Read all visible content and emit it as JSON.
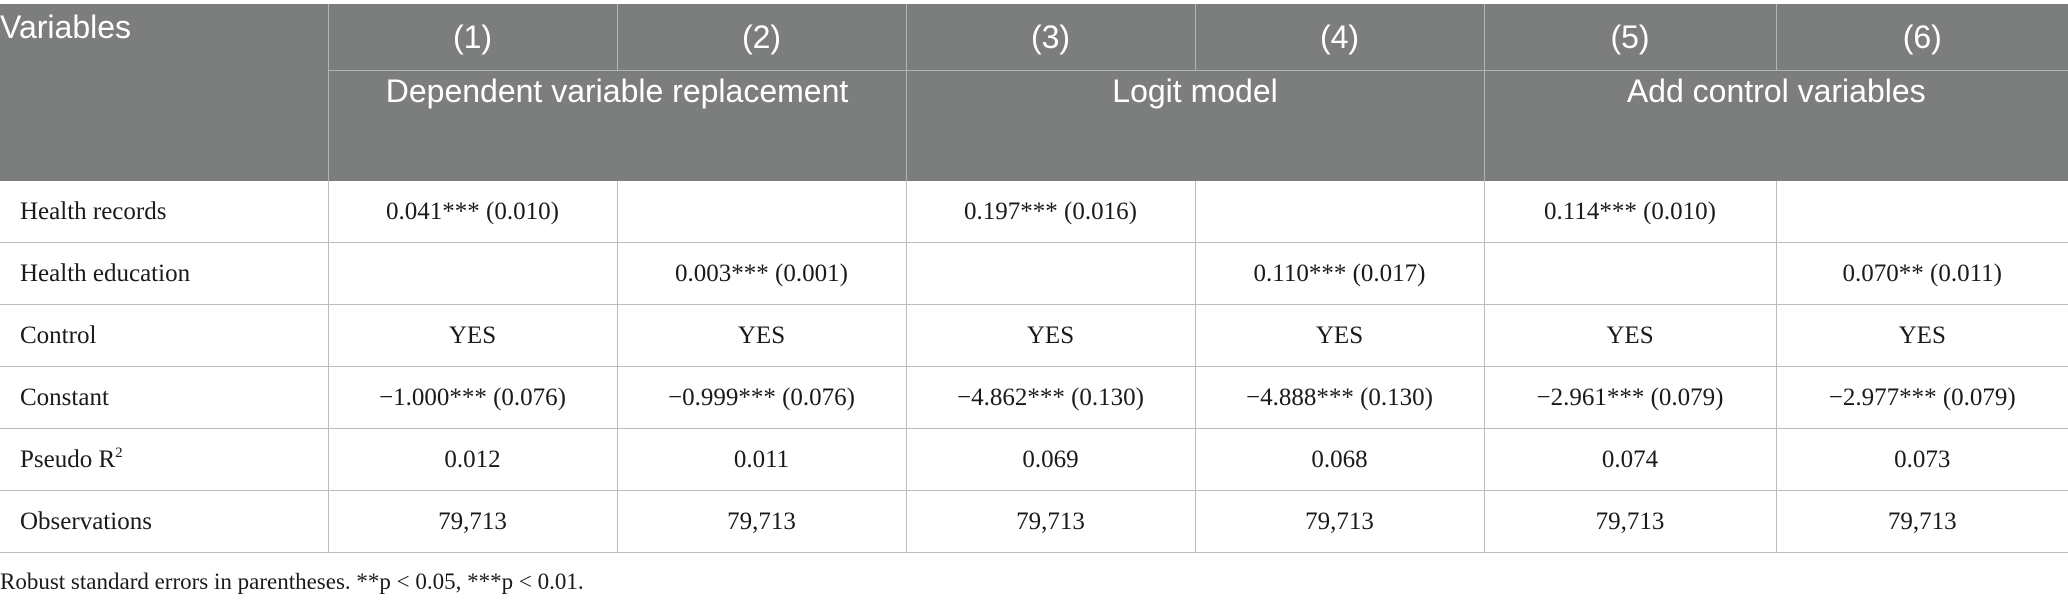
{
  "table": {
    "header": {
      "variables": "Variables",
      "columns": [
        "(1)",
        "(2)",
        "(3)",
        "(4)",
        "(5)",
        "(6)"
      ],
      "groups": [
        "Dependent variable replacement",
        "Logit model",
        "Add control variables"
      ]
    },
    "rows": [
      {
        "label": "Health records",
        "cells": [
          "0.041*** (0.010)",
          "",
          "0.197*** (0.016)",
          "",
          "0.114*** (0.010)",
          ""
        ]
      },
      {
        "label": "Health education",
        "cells": [
          "",
          "0.003*** (0.001)",
          "",
          "0.110*** (0.017)",
          "",
          "0.070** (0.011)"
        ]
      },
      {
        "label": "Control",
        "cells": [
          "YES",
          "YES",
          "YES",
          "YES",
          "YES",
          "YES"
        ]
      },
      {
        "label": "Constant",
        "cells": [
          "−1.000*** (0.076)",
          "−0.999*** (0.076)",
          "−4.862*** (0.130)",
          "−4.888*** (0.130)",
          "−2.961*** (0.079)",
          "−2.977*** (0.079)"
        ]
      },
      {
        "label": "Pseudo R",
        "label_sup": "2",
        "cells": [
          "0.012",
          "0.011",
          "0.069",
          "0.068",
          "0.074",
          "0.073"
        ]
      },
      {
        "label": "Observations",
        "cells": [
          "79,713",
          "79,713",
          "79,713",
          "79,713",
          "79,713",
          "79,713"
        ]
      }
    ]
  },
  "note": "Robust standard errors in parentheses. **p < 0.05, ***p < 0.01."
}
